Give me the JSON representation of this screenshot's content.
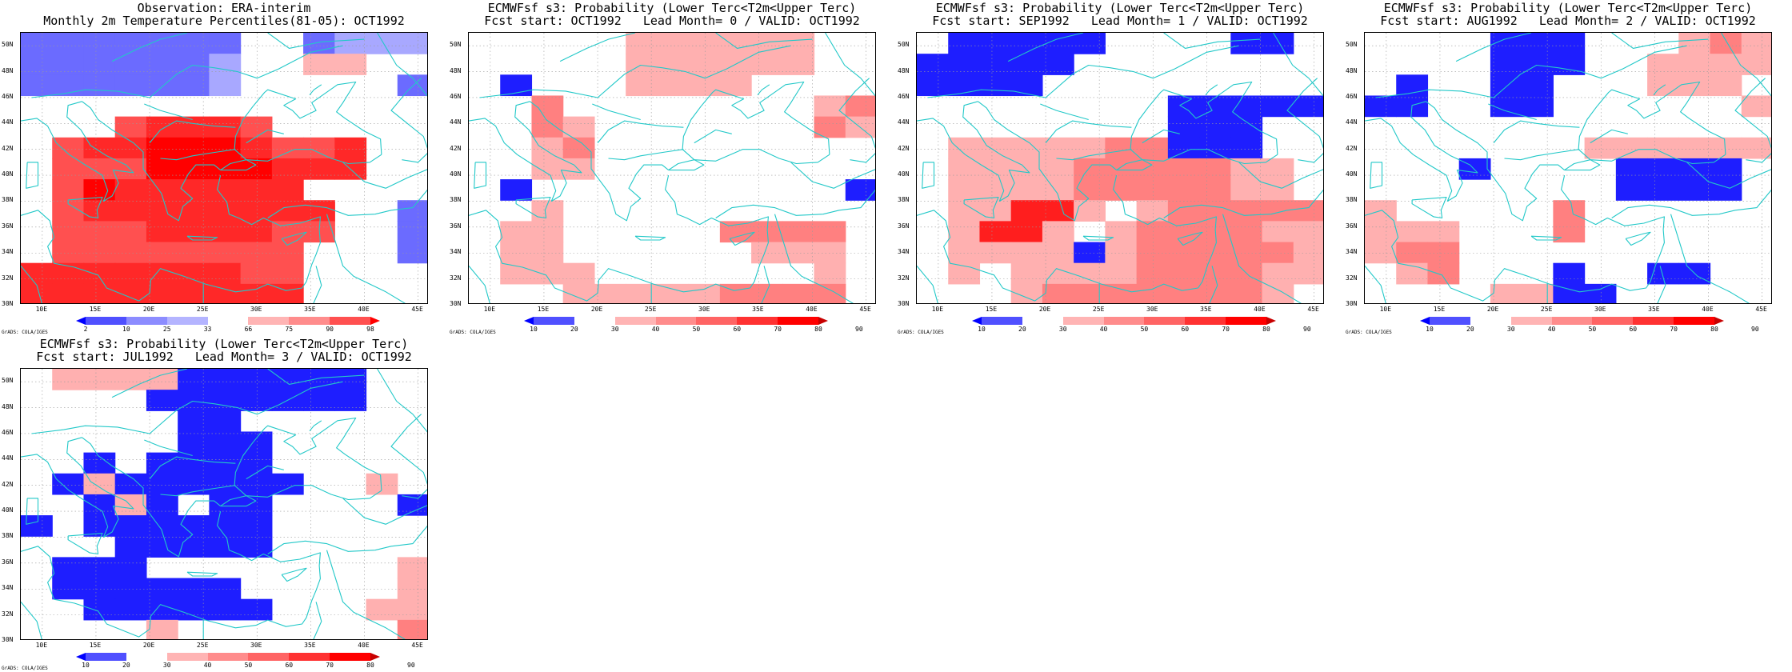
{
  "xticks": [
    "10E",
    "15E",
    "20E",
    "25E",
    "30E",
    "35E",
    "40E",
    "45E"
  ],
  "yticks": [
    "50N",
    "48N",
    "46N",
    "44N",
    "42N",
    "40N",
    "38N",
    "36N",
    "34N",
    "32N",
    "30N"
  ],
  "grads_label": "GrADS: COLA/IGES",
  "colors": {
    "obs": [
      "#0000ff",
      "#5050ff",
      "#8c8cff",
      "#b4b4ff",
      "#ffffff",
      "#ffb4b4",
      "#ff8c8c",
      "#ff5050",
      "#ff0000"
    ],
    "fcst": [
      "#0000ff",
      "#5050ff",
      "#ffffff",
      "#ffb4b4",
      "#ff8c8c",
      "#ff6464",
      "#ff3232",
      "#ff0000",
      "#c80000"
    ]
  },
  "panels": [
    {
      "title1": "Observation: ERA-interim",
      "title2": "Monthly 2m Temperature Percentiles(81-05): OCT1992",
      "colorbar_labels": [
        "2",
        "10",
        "25",
        "33",
        "66",
        "75",
        "90",
        "98"
      ],
      "colorbar_kind": "obs",
      "grid": [
        "1111111001222",
        "1111112003300",
        "1111112000001",
        "0000000000000",
        "0006777600000",
        "0677888766700",
        "0666888877700",
        "0687777770000",
        "0677777777001",
        "0666777766001",
        "0666666660001",
        "7777777660000",
        "7777777770000"
      ]
    },
    {
      "title1": "ECMWFsf s3: Probability (Lower Terc<T2m<Upper Terc)",
      "title2": "Fcst start: OCT1992   Lead Month= 0 / VALID: OCT1992",
      "colorbar_labels": [
        "10",
        "20",
        "30",
        "40",
        "50",
        "60",
        "70",
        "80",
        "90"
      ],
      "colorbar_kind": "fcst",
      "grid": [
        "0000033333300",
        "0000033333300",
        "0100033330000",
        "0040000000034",
        "0043000000043",
        "0034000000000",
        "0033000000000",
        "0100000000001",
        "0030000000000",
        "0330000044440",
        "0330000003330",
        "0333000000030",
        "0003333344440"
      ]
    },
    {
      "title1": "ECMWFsf s3: Probability (Lower Terc<T2m<Upper Terc)",
      "title2": "Fcst start: SEP1992   Lead Month= 1 / VALID: OCT1992",
      "colorbar_labels": [
        "10",
        "20",
        "30",
        "40",
        "50",
        "60",
        "70",
        "80",
        "90"
      ],
      "colorbar_kind": "fcst",
      "grid": [
        "0111110000110",
        "1111100000000",
        "1111000000000",
        "0000000011111",
        "0000000011100",
        "0333334411100",
        "0333344444330",
        "0333344444330",
        "0337730344444",
        "0377303444433",
        "0333313444443",
        "0303333444433",
        "0003444444430"
      ]
    },
    {
      "title1": "ECMWFsf s3: Probability (Lower Terc<T2m<Upper Terc)",
      "title2": "Fcst start: AUG1992   Lead Month= 2 / VALID: OCT1992",
      "colorbar_labels": [
        "10",
        "20",
        "30",
        "40",
        "50",
        "60",
        "70",
        "80",
        "90"
      ],
      "colorbar_kind": "fcst",
      "grid": [
        "0000111000343",
        "0000111003333",
        "0100110003330",
        "1100110000003",
        "0000000000000",
        "0000000333333",
        "0001000011110",
        "0000000011110",
        "3000004000000",
        "3330004000000",
        "3440000000000",
        "0340001001100",
        "0000331100000"
      ]
    },
    {
      "title1": "ECMWFsf s3: Probability (Lower Terc<T2m<Upper Terc)",
      "title2": "Fcst start: JUL1992   Lead Month= 3 / VALID: OCT1992",
      "colorbar_labels": [
        "10",
        "20",
        "30",
        "40",
        "50",
        "60",
        "70",
        "80",
        "90"
      ],
      "colorbar_kind": "fcst",
      "grid": [
        "0333311111100",
        "0000111111100",
        "0000011000000",
        "0000011100000",
        "0010111100000",
        "0131111110030",
        "0013101100001",
        "1011111100000",
        "0001111100000",
        "0111000000003",
        "0111111000003",
        "0011111100033",
        "0000300000004"
      ]
    }
  ]
}
